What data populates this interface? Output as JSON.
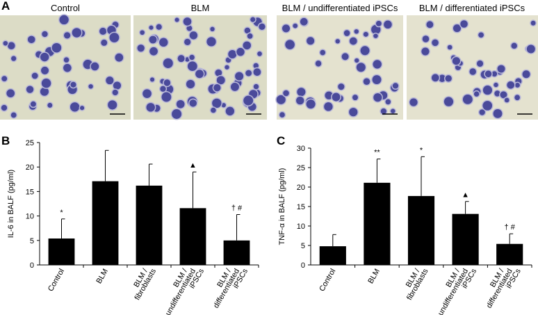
{
  "figure_a": {
    "panel": "A",
    "captions": [
      "Control",
      "BLM",
      "BLM / undifferentiated  iPSCs",
      "BLM / differentiated  iPSCs"
    ]
  },
  "chart_data": [
    {
      "type": "bar",
      "panel": "B",
      "y_label": "IL-6 in BALF (pg/ml)",
      "categories": [
        [
          "Control"
        ],
        [
          "BLM"
        ],
        [
          "BLM /",
          "fibroblasts"
        ],
        [
          "BLM /",
          "undifferentiated",
          "iPSCs"
        ],
        [
          "BLM /",
          "differentiated",
          "iPSCs"
        ]
      ],
      "values": [
        5.4,
        17.1,
        16.2,
        11.6,
        5.0
      ],
      "errors": [
        4.0,
        6.3,
        4.4,
        7.4,
        5.3
      ],
      "annotations": [
        "*",
        null,
        null,
        "▲",
        "† #"
      ],
      "color": "#000000",
      "ylim": [
        0,
        25
      ],
      "yticks": [
        0,
        5,
        10,
        15,
        20,
        25
      ]
    },
    {
      "type": "bar",
      "panel": "C",
      "y_label": "TNF-α in BALF (pg/ml)",
      "categories": [
        [
          "Control"
        ],
        [
          "BLM"
        ],
        [
          "BLM /",
          "fibroblasts"
        ],
        [
          "BLM /",
          "undifferentiated",
          "iPSCs"
        ],
        [
          "BLM /",
          "differentiated",
          "iPSCs"
        ]
      ],
      "values": [
        4.8,
        21.1,
        17.7,
        13.1,
        5.4
      ],
      "errors": [
        3.0,
        6.1,
        10.1,
        3.2,
        2.6
      ],
      "annotations": [
        null,
        "**",
        "*",
        "▲",
        "† #"
      ],
      "color": "#000000",
      "ylim": [
        0,
        30
      ],
      "yticks": [
        0,
        5,
        10,
        15,
        20,
        25,
        30
      ]
    }
  ]
}
